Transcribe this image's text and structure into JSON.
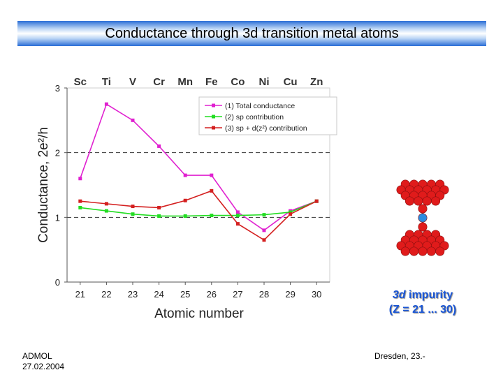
{
  "title": "Conductance through 3d transition metal atoms",
  "footer": {
    "left_line1": "ADMOL",
    "left_line2": "27.02.2004",
    "right": "Dresden, 23.-"
  },
  "impurity": {
    "italic": "3d",
    "rest": " impurity",
    "line2": "(Z = 21 ... 30)"
  },
  "colors": {
    "atom_red": "#e01b1b",
    "atom_blue": "#2a8ce0",
    "title_blue": "#2a6dd6",
    "impurity_text": "#1a56d6"
  },
  "chart_data": {
    "type": "line",
    "x": [
      21,
      22,
      23,
      24,
      25,
      26,
      27,
      28,
      29,
      30
    ],
    "top_labels": [
      "Sc",
      "Ti",
      "V",
      "Cr",
      "Mn",
      "Fe",
      "Co",
      "Ni",
      "Cu",
      "Zn"
    ],
    "xlabel": "Atomic number",
    "ylabel": "Conductance, 2e²/h",
    "xlim": [
      20.5,
      30.5
    ],
    "ylim": [
      0,
      3
    ],
    "yticks": [
      0,
      1,
      2,
      3
    ],
    "dashed_reference_lines": [
      1,
      2
    ],
    "legend_position": "top-right",
    "series": [
      {
        "name": "(1) Total conductance",
        "color": "#e020d0",
        "values": [
          1.6,
          2.75,
          2.5,
          2.1,
          1.65,
          1.65,
          1.08,
          0.8,
          1.1,
          1.25
        ]
      },
      {
        "name": "(2) sp contribution",
        "color": "#22dd22",
        "values": [
          1.15,
          1.1,
          1.05,
          1.02,
          1.02,
          1.03,
          1.03,
          1.04,
          1.08,
          1.25
        ]
      },
      {
        "name": "(3) sp + d(z²) contribution",
        "color": "#d42020",
        "values": [
          1.25,
          1.21,
          1.17,
          1.15,
          1.26,
          1.41,
          0.9,
          0.65,
          1.05,
          1.25
        ]
      }
    ]
  }
}
